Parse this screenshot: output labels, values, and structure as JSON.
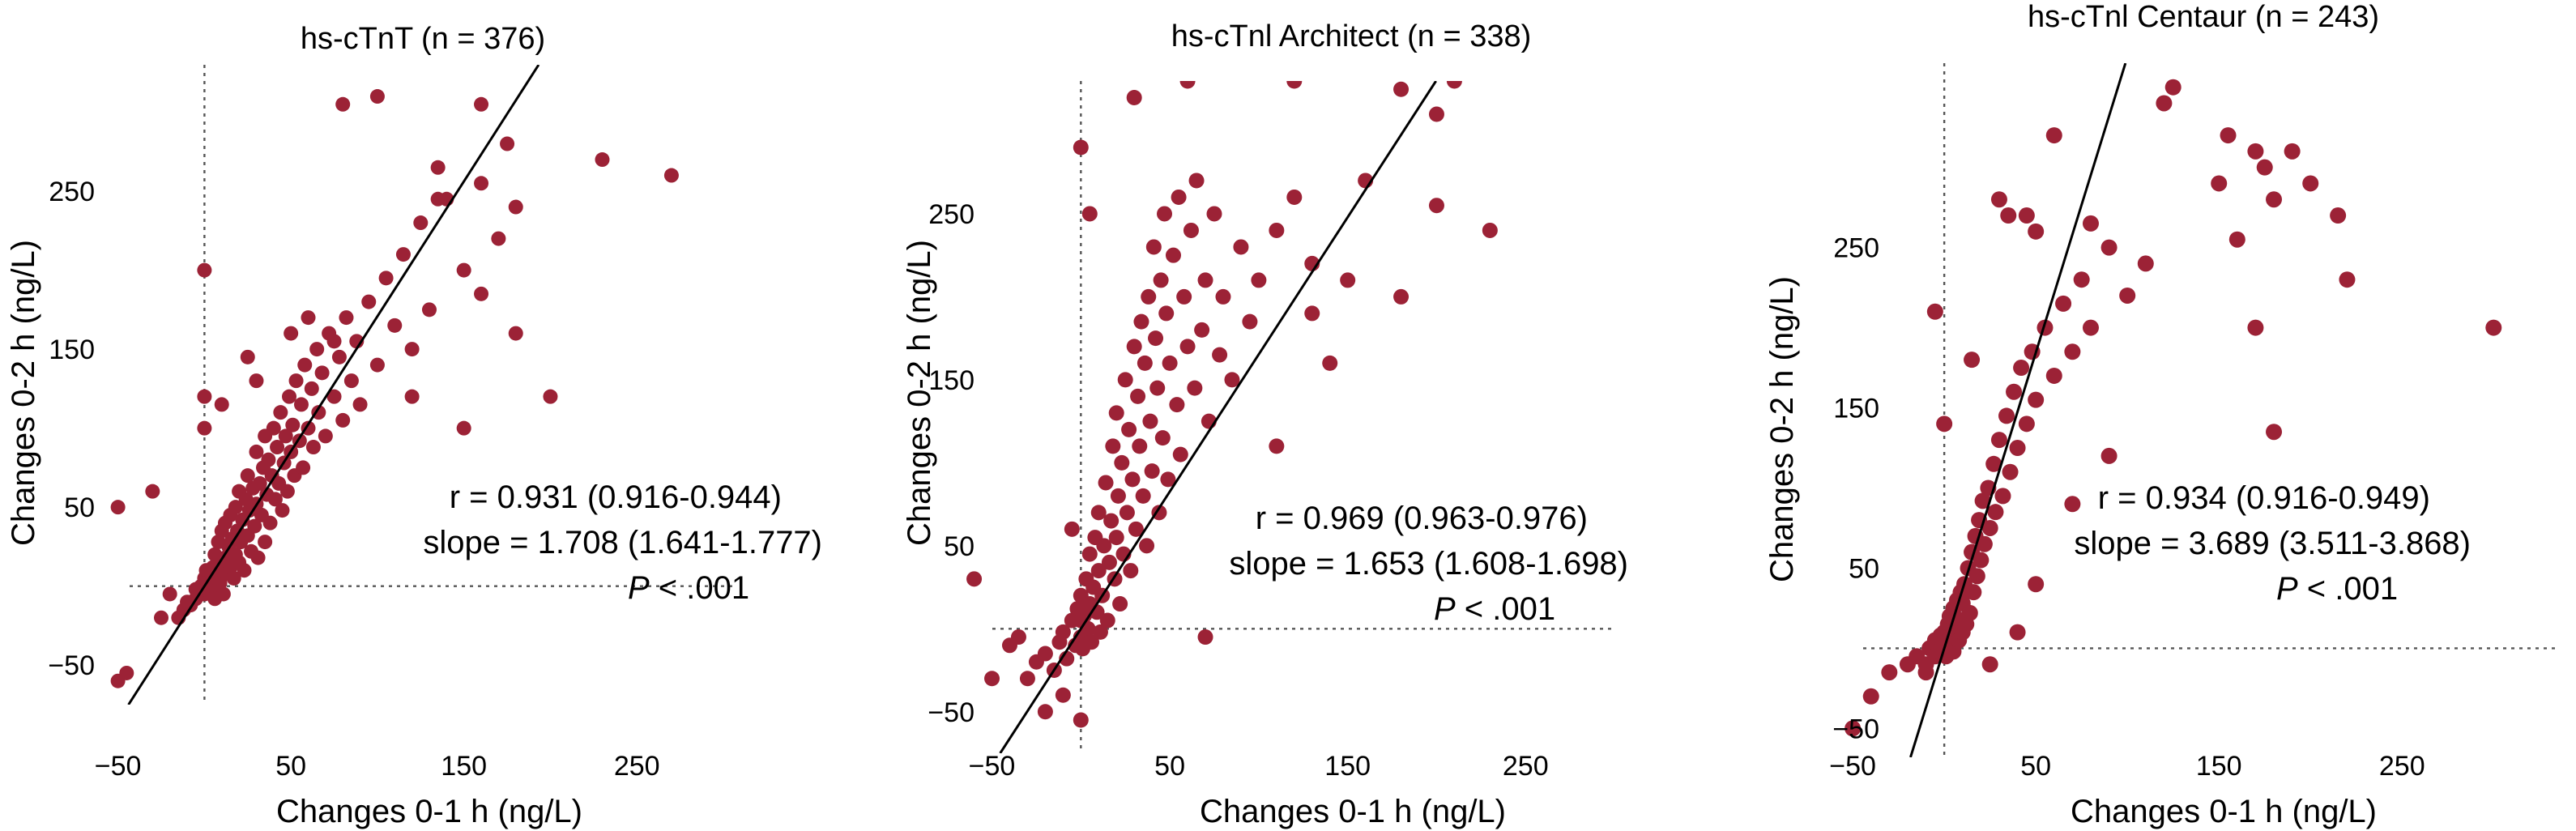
{
  "chart_data": [
    {
      "type": "scatter",
      "title": "hs-cTnT (n = 376)",
      "xlabel": "Changes 0-1 h (ng/L)",
      "ylabel": "Changes 0-2 h (ng/L)",
      "x_ticks": [
        -50,
        50,
        150,
        250
      ],
      "y_ticks": [
        -50,
        50,
        150,
        250
      ],
      "x_ticks_text": [
        "−50",
        "50",
        "150",
        "250"
      ],
      "y_ticks_text": [
        "−50",
        "50",
        "150",
        "250"
      ],
      "xlim": [
        -62,
        315
      ],
      "ylim": [
        -75,
        330
      ],
      "grid": false,
      "reference_lines": {
        "x": 0,
        "y": 0
      },
      "regression": {
        "slope": 1.708,
        "intercept": 0
      },
      "stats": {
        "r": "r = 0.931 (0.916-0.944)",
        "slope": "slope = 1.708 (1.641-1.777)",
        "p_italic": "P",
        "p_rest": " < .001"
      },
      "points": [
        [
          -50,
          50
        ],
        [
          -45,
          -55
        ],
        [
          -50,
          -60
        ],
        [
          -20,
          -5
        ],
        [
          -15,
          -20
        ],
        [
          -12,
          -15
        ],
        [
          -10,
          -10
        ],
        [
          -8,
          -12
        ],
        [
          -5,
          -8
        ],
        [
          -5,
          -2
        ],
        [
          -3,
          -5
        ],
        [
          -2,
          0
        ],
        [
          0,
          -5
        ],
        [
          0,
          0
        ],
        [
          0,
          5
        ],
        [
          1,
          10
        ],
        [
          2,
          -3
        ],
        [
          3,
          3
        ],
        [
          4,
          8
        ],
        [
          5,
          0
        ],
        [
          5,
          12
        ],
        [
          6,
          -8
        ],
        [
          6,
          20
        ],
        [
          7,
          5
        ],
        [
          8,
          15
        ],
        [
          8,
          28
        ],
        [
          9,
          2
        ],
        [
          10,
          10
        ],
        [
          10,
          35
        ],
        [
          11,
          -5
        ],
        [
          12,
          18
        ],
        [
          12,
          40
        ],
        [
          13,
          8
        ],
        [
          14,
          25
        ],
        [
          15,
          12
        ],
        [
          15,
          45
        ],
        [
          16,
          30
        ],
        [
          17,
          5
        ],
        [
          18,
          20
        ],
        [
          18,
          50
        ],
        [
          19,
          35
        ],
        [
          20,
          15
        ],
        [
          20,
          60
        ],
        [
          21,
          28
        ],
        [
          22,
          42
        ],
        [
          23,
          10
        ],
        [
          24,
          55
        ],
        [
          25,
          32
        ],
        [
          25,
          70
        ],
        [
          26,
          48
        ],
        [
          27,
          22
        ],
        [
          28,
          62
        ],
        [
          29,
          38
        ],
        [
          30,
          52
        ],
        [
          30,
          85
        ],
        [
          31,
          18
        ],
        [
          32,
          65
        ],
        [
          33,
          45
        ],
        [
          34,
          75
        ],
        [
          35,
          28
        ],
        [
          35,
          95
        ],
        [
          36,
          58
        ],
        [
          37,
          80
        ],
        [
          38,
          40
        ],
        [
          39,
          70
        ],
        [
          40,
          100
        ],
        [
          41,
          55
        ],
        [
          42,
          88
        ],
        [
          43,
          65
        ],
        [
          44,
          110
        ],
        [
          45,
          48
        ],
        [
          46,
          78
        ],
        [
          47,
          95
        ],
        [
          48,
          60
        ],
        [
          49,
          120
        ],
        [
          50,
          85
        ],
        [
          51,
          102
        ],
        [
          52,
          70
        ],
        [
          53,
          130
        ],
        [
          55,
          92
        ],
        [
          56,
          115
        ],
        [
          57,
          75
        ],
        [
          58,
          140
        ],
        [
          60,
          100
        ],
        [
          62,
          125
        ],
        [
          63,
          88
        ],
        [
          65,
          150
        ],
        [
          66,
          110
        ],
        [
          68,
          135
        ],
        [
          70,
          95
        ],
        [
          72,
          160
        ],
        [
          75,
          120
        ],
        [
          78,
          145
        ],
        [
          80,
          105
        ],
        [
          82,
          170
        ],
        [
          85,
          130
        ],
        [
          88,
          155
        ],
        [
          90,
          115
        ],
        [
          95,
          180
        ],
        [
          100,
          140
        ],
        [
          105,
          195
        ],
        [
          110,
          165
        ],
        [
          115,
          210
        ],
        [
          120,
          150
        ],
        [
          125,
          230
        ],
        [
          130,
          175
        ],
        [
          140,
          245
        ],
        [
          150,
          200
        ],
        [
          160,
          255
        ],
        [
          170,
          220
        ],
        [
          -30,
          60
        ],
        [
          -25,
          -20
        ],
        [
          0,
          120
        ],
        [
          0,
          200
        ],
        [
          10,
          115
        ],
        [
          25,
          145
        ],
        [
          0,
          100
        ],
        [
          75,
          155
        ],
        [
          120,
          120
        ],
        [
          160,
          305
        ],
        [
          160,
          185
        ],
        [
          175,
          280
        ],
        [
          180,
          240
        ],
        [
          230,
          270
        ],
        [
          270,
          260
        ],
        [
          135,
          265
        ],
        [
          135,
          245
        ],
        [
          80,
          305
        ],
        [
          150,
          100
        ],
        [
          100,
          310
        ],
        [
          200,
          120
        ],
        [
          180,
          160
        ],
        [
          30,
          130
        ],
        [
          50,
          160
        ],
        [
          60,
          170
        ]
      ]
    },
    {
      "type": "scatter",
      "title": "hs-cTnl Architect (n = 338)",
      "xlabel": "Changes 0-1 h (ng/L)",
      "ylabel": "Changes 0-2 h (ng/L)",
      "x_ticks": [
        -50,
        50,
        150,
        250
      ],
      "y_ticks": [
        -50,
        50,
        150,
        250
      ],
      "x_ticks_text": [
        "−50",
        "50",
        "150",
        "250"
      ],
      "y_ticks_text": [
        "−50",
        "50",
        "150",
        "250"
      ],
      "xlim": [
        -68,
        310
      ],
      "ylim": [
        -75,
        330
      ],
      "grid": false,
      "reference_lines": {
        "x": 0,
        "y": 0
      },
      "regression": {
        "slope": 1.653,
        "intercept": 0
      },
      "stats": {
        "r": "r = 0.969 (0.963-0.976)",
        "slope": "slope = 1.653 (1.608-1.698)",
        "p_italic": "P",
        "p_rest": " < .001"
      },
      "points": [
        [
          -40,
          -10
        ],
        [
          -35,
          -5
        ],
        [
          -30,
          -30
        ],
        [
          -25,
          -20
        ],
        [
          -20,
          -15
        ],
        [
          -15,
          -25
        ],
        [
          -12,
          -8
        ],
        [
          -10,
          -2
        ],
        [
          -8,
          -18
        ],
        [
          -5,
          5
        ],
        [
          -3,
          -10
        ],
        [
          -2,
          12
        ],
        [
          0,
          -5
        ],
        [
          0,
          5
        ],
        [
          0,
          20
        ],
        [
          1,
          -12
        ],
        [
          2,
          8
        ],
        [
          3,
          30
        ],
        [
          4,
          0
        ],
        [
          5,
          15
        ],
        [
          5,
          45
        ],
        [
          6,
          -8
        ],
        [
          7,
          25
        ],
        [
          8,
          55
        ],
        [
          9,
          10
        ],
        [
          10,
          35
        ],
        [
          10,
          70
        ],
        [
          11,
          -2
        ],
        [
          12,
          20
        ],
        [
          13,
          50
        ],
        [
          14,
          88
        ],
        [
          15,
          5
        ],
        [
          16,
          40
        ],
        [
          17,
          65
        ],
        [
          18,
          110
        ],
        [
          19,
          30
        ],
        [
          20,
          55
        ],
        [
          20,
          130
        ],
        [
          21,
          80
        ],
        [
          22,
          15
        ],
        [
          23,
          100
        ],
        [
          24,
          45
        ],
        [
          25,
          150
        ],
        [
          26,
          70
        ],
        [
          27,
          120
        ],
        [
          28,
          35
        ],
        [
          29,
          90
        ],
        [
          30,
          170
        ],
        [
          31,
          60
        ],
        [
          32,
          140
        ],
        [
          33,
          110
        ],
        [
          34,
          185
        ],
        [
          35,
          80
        ],
        [
          36,
          160
        ],
        [
          37,
          50
        ],
        [
          38,
          200
        ],
        [
          39,
          125
        ],
        [
          40,
          95
        ],
        [
          41,
          230
        ],
        [
          42,
          175
        ],
        [
          43,
          145
        ],
        [
          44,
          70
        ],
        [
          45,
          210
        ],
        [
          46,
          115
        ],
        [
          47,
          250
        ],
        [
          48,
          190
        ],
        [
          49,
          90
        ],
        [
          50,
          160
        ],
        [
          52,
          225
        ],
        [
          54,
          135
        ],
        [
          55,
          260
        ],
        [
          56,
          105
        ],
        [
          58,
          200
        ],
        [
          60,
          170
        ],
        [
          62,
          240
        ],
        [
          64,
          145
        ],
        [
          65,
          270
        ],
        [
          68,
          180
        ],
        [
          70,
          210
        ],
        [
          72,
          125
        ],
        [
          75,
          250
        ],
        [
          78,
          165
        ],
        [
          80,
          200
        ],
        [
          85,
          150
        ],
        [
          90,
          230
        ],
        [
          95,
          185
        ],
        [
          100,
          210
        ],
        [
          110,
          240
        ],
        [
          120,
          260
        ],
        [
          130,
          220
        ],
        [
          -60,
          30
        ],
        [
          -50,
          -30
        ],
        [
          0,
          290
        ],
        [
          5,
          250
        ],
        [
          30,
          320
        ],
        [
          60,
          330
        ],
        [
          70,
          350
        ],
        [
          90,
          340
        ],
        [
          120,
          330
        ],
        [
          170,
          340
        ],
        [
          180,
          325
        ],
        [
          210,
          330
        ],
        [
          200,
          310
        ],
        [
          160,
          270
        ],
        [
          200,
          255
        ],
        [
          230,
          240
        ],
        [
          130,
          190
        ],
        [
          150,
          210
        ],
        [
          140,
          160
        ],
        [
          180,
          200
        ],
        [
          110,
          110
        ],
        [
          70,
          -5
        ],
        [
          -10,
          -40
        ],
        [
          -20,
          -50
        ],
        [
          0,
          -55
        ],
        [
          -5,
          60
        ]
      ]
    },
    {
      "type": "scatter",
      "title": "hs-cTnl Centaur (n = 243)",
      "xlabel": "Changes 0-1 h (ng/L)",
      "ylabel": "Changes 0-2 h (ng/L)",
      "x_ticks": [
        -50,
        50,
        150,
        250
      ],
      "y_ticks": [
        -50,
        50,
        150,
        250
      ],
      "x_ticks_text": [
        "−50",
        "50",
        "150",
        "250"
      ],
      "y_ticks_text": [
        "−50",
        "50",
        "150",
        "250"
      ],
      "xlim": [
        -62,
        345
      ],
      "ylim": [
        -68,
        365
      ],
      "grid": false,
      "reference_lines": {
        "x": 0,
        "y": 0
      },
      "regression": {
        "slope": 3.689,
        "intercept": 0
      },
      "stats": {
        "r": "r = 0.934 (0.916-0.949)",
        "slope": "slope = 3.689 (3.511-3.868)",
        "p_italic": "P",
        "p_rest": " < .001"
      },
      "points": [
        [
          -50,
          -50
        ],
        [
          -40,
          -30
        ],
        [
          -30,
          -15
        ],
        [
          -20,
          -10
        ],
        [
          -15,
          -5
        ],
        [
          -10,
          -10
        ],
        [
          -8,
          0
        ],
        [
          -5,
          -5
        ],
        [
          -5,
          5
        ],
        [
          -3,
          -2
        ],
        [
          -2,
          8
        ],
        [
          0,
          -3
        ],
        [
          0,
          3
        ],
        [
          0,
          10
        ],
        [
          1,
          -5
        ],
        [
          2,
          5
        ],
        [
          2,
          15
        ],
        [
          3,
          0
        ],
        [
          3,
          20
        ],
        [
          4,
          8
        ],
        [
          5,
          -2
        ],
        [
          5,
          25
        ],
        [
          6,
          12
        ],
        [
          7,
          30
        ],
        [
          8,
          5
        ],
        [
          8,
          18
        ],
        [
          9,
          35
        ],
        [
          10,
          10
        ],
        [
          10,
          28
        ],
        [
          11,
          40
        ],
        [
          12,
          15
        ],
        [
          13,
          50
        ],
        [
          14,
          22
        ],
        [
          15,
          60
        ],
        [
          16,
          35
        ],
        [
          17,
          70
        ],
        [
          18,
          45
        ],
        [
          19,
          80
        ],
        [
          20,
          55
        ],
        [
          21,
          92
        ],
        [
          22,
          65
        ],
        [
          24,
          100
        ],
        [
          25,
          75
        ],
        [
          27,
          115
        ],
        [
          28,
          85
        ],
        [
          30,
          130
        ],
        [
          32,
          95
        ],
        [
          34,
          145
        ],
        [
          36,
          110
        ],
        [
          38,
          160
        ],
        [
          40,
          125
        ],
        [
          42,
          175
        ],
        [
          45,
          140
        ],
        [
          48,
          185
        ],
        [
          50,
          155
        ],
        [
          55,
          200
        ],
        [
          60,
          170
        ],
        [
          65,
          215
        ],
        [
          70,
          185
        ],
        [
          75,
          230
        ],
        [
          80,
          200
        ],
        [
          -5,
          210
        ],
        [
          0,
          140
        ],
        [
          15,
          180
        ],
        [
          30,
          280
        ],
        [
          35,
          270
        ],
        [
          45,
          270
        ],
        [
          50,
          260
        ],
        [
          60,
          320
        ],
        [
          80,
          265
        ],
        [
          90,
          250
        ],
        [
          100,
          220
        ],
        [
          110,
          240
        ],
        [
          120,
          340
        ],
        [
          125,
          350
        ],
        [
          150,
          290
        ],
        [
          155,
          320
        ],
        [
          160,
          255
        ],
        [
          170,
          310
        ],
        [
          175,
          300
        ],
        [
          180,
          280
        ],
        [
          190,
          310
        ],
        [
          200,
          290
        ],
        [
          215,
          270
        ],
        [
          220,
          230
        ],
        [
          180,
          135
        ],
        [
          170,
          200
        ],
        [
          300,
          200
        ],
        [
          70,
          90
        ],
        [
          90,
          120
        ],
        [
          50,
          40
        ],
        [
          25,
          -10
        ],
        [
          -10,
          -15
        ],
        [
          40,
          10
        ]
      ]
    }
  ]
}
